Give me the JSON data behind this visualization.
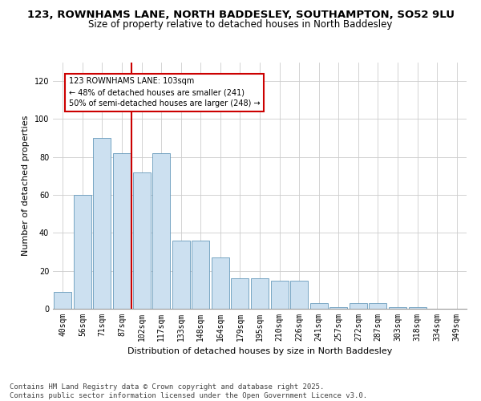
{
  "title_line1": "123, ROWNHAMS LANE, NORTH BADDESLEY, SOUTHAMPTON, SO52 9LU",
  "title_line2": "Size of property relative to detached houses in North Baddesley",
  "xlabel": "Distribution of detached houses by size in North Baddesley",
  "ylabel": "Number of detached properties",
  "categories": [
    "40sqm",
    "56sqm",
    "71sqm",
    "87sqm",
    "102sqm",
    "117sqm",
    "133sqm",
    "148sqm",
    "164sqm",
    "179sqm",
    "195sqm",
    "210sqm",
    "226sqm",
    "241sqm",
    "257sqm",
    "272sqm",
    "287sqm",
    "303sqm",
    "318sqm",
    "334sqm",
    "349sqm"
  ],
  "values": [
    9,
    60,
    90,
    82,
    72,
    82,
    36,
    36,
    27,
    16,
    16,
    15,
    15,
    3,
    1,
    3,
    3,
    1,
    1,
    0,
    0
  ],
  "bar_color": "#cce0f0",
  "bar_edge_color": "#6699bb",
  "vline_x_idx": 4,
  "vline_color": "#cc0000",
  "annotation_text": "123 ROWNHAMS LANE: 103sqm\n← 48% of detached houses are smaller (241)\n50% of semi-detached houses are larger (248) →",
  "annotation_box_color": "#cc0000",
  "ylim": [
    0,
    130
  ],
  "yticks": [
    0,
    20,
    40,
    60,
    80,
    100,
    120
  ],
  "grid_color": "#cccccc",
  "background_color": "#ffffff",
  "footer_line1": "Contains HM Land Registry data © Crown copyright and database right 2025.",
  "footer_line2": "Contains public sector information licensed under the Open Government Licence v3.0.",
  "title_fontsize": 9.5,
  "subtitle_fontsize": 8.5,
  "axis_label_fontsize": 8,
  "tick_fontsize": 7,
  "annotation_fontsize": 7,
  "footer_fontsize": 6.5,
  "ylabel_fontsize": 8
}
